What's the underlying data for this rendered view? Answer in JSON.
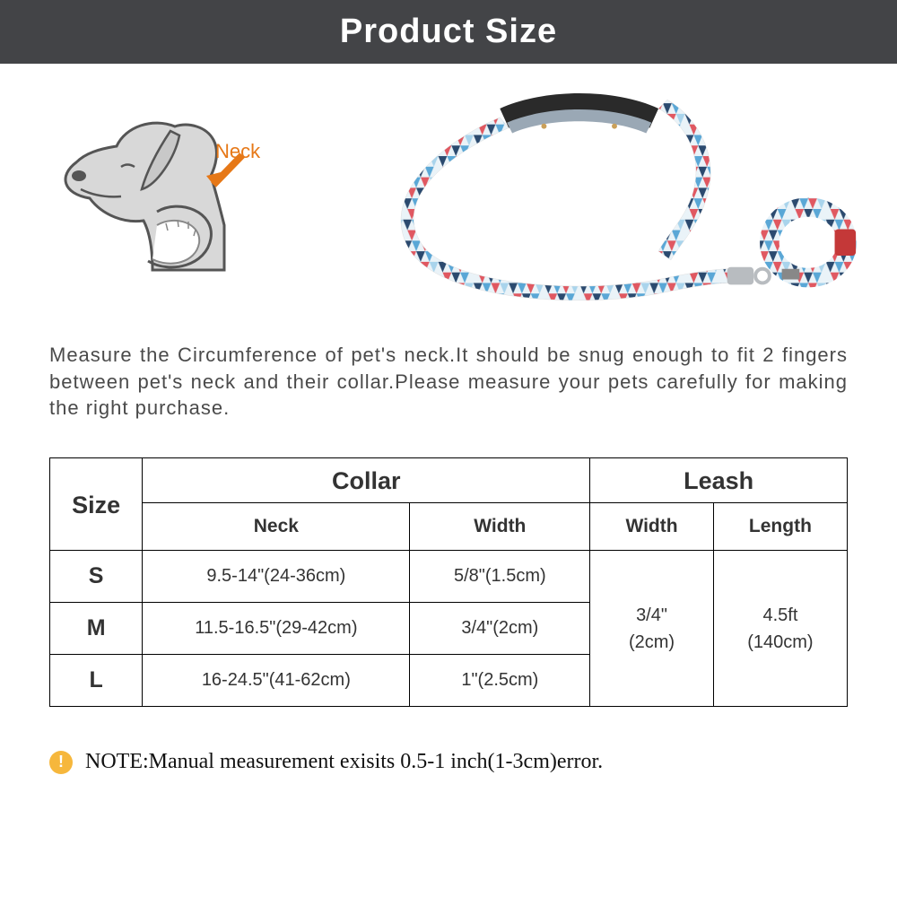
{
  "header": {
    "title": "Product Size"
  },
  "diagram": {
    "neck_label": "Neck"
  },
  "description": "Measure the Circumference of pet's neck.It should be snug enough to fit 2 fingers between pet's neck and their collar.Please measure your pets carefully for making the right purchase.",
  "table": {
    "columns": {
      "size": "Size",
      "collar": "Collar",
      "leash": "Leash",
      "neck": "Neck",
      "width": "Width",
      "length": "Length"
    },
    "rows": [
      {
        "size": "S",
        "neck": "9.5-14\"(24-36cm)",
        "collar_width": "5/8\"(1.5cm)"
      },
      {
        "size": "M",
        "neck": "11.5-16.5\"(29-42cm)",
        "collar_width": "3/4\"(2cm)"
      },
      {
        "size": "L",
        "neck": "16-24.5\"(41-62cm)",
        "collar_width": "1\"(2.5cm)"
      }
    ],
    "leash": {
      "width": "3/4\"\n(2cm)",
      "length": "4.5ft\n(140cm)"
    }
  },
  "note": {
    "icon": "!",
    "text": "NOTE:Manual measurement exisits 0.5-1 inch(1-3cm)error."
  },
  "colors": {
    "header_bg": "#434447",
    "accent": "#e67817",
    "note_icon_bg": "#f6b73c",
    "leash_blue": "#5aa7d6",
    "leash_navy": "#2b4a6f",
    "leash_red": "#e05861"
  }
}
